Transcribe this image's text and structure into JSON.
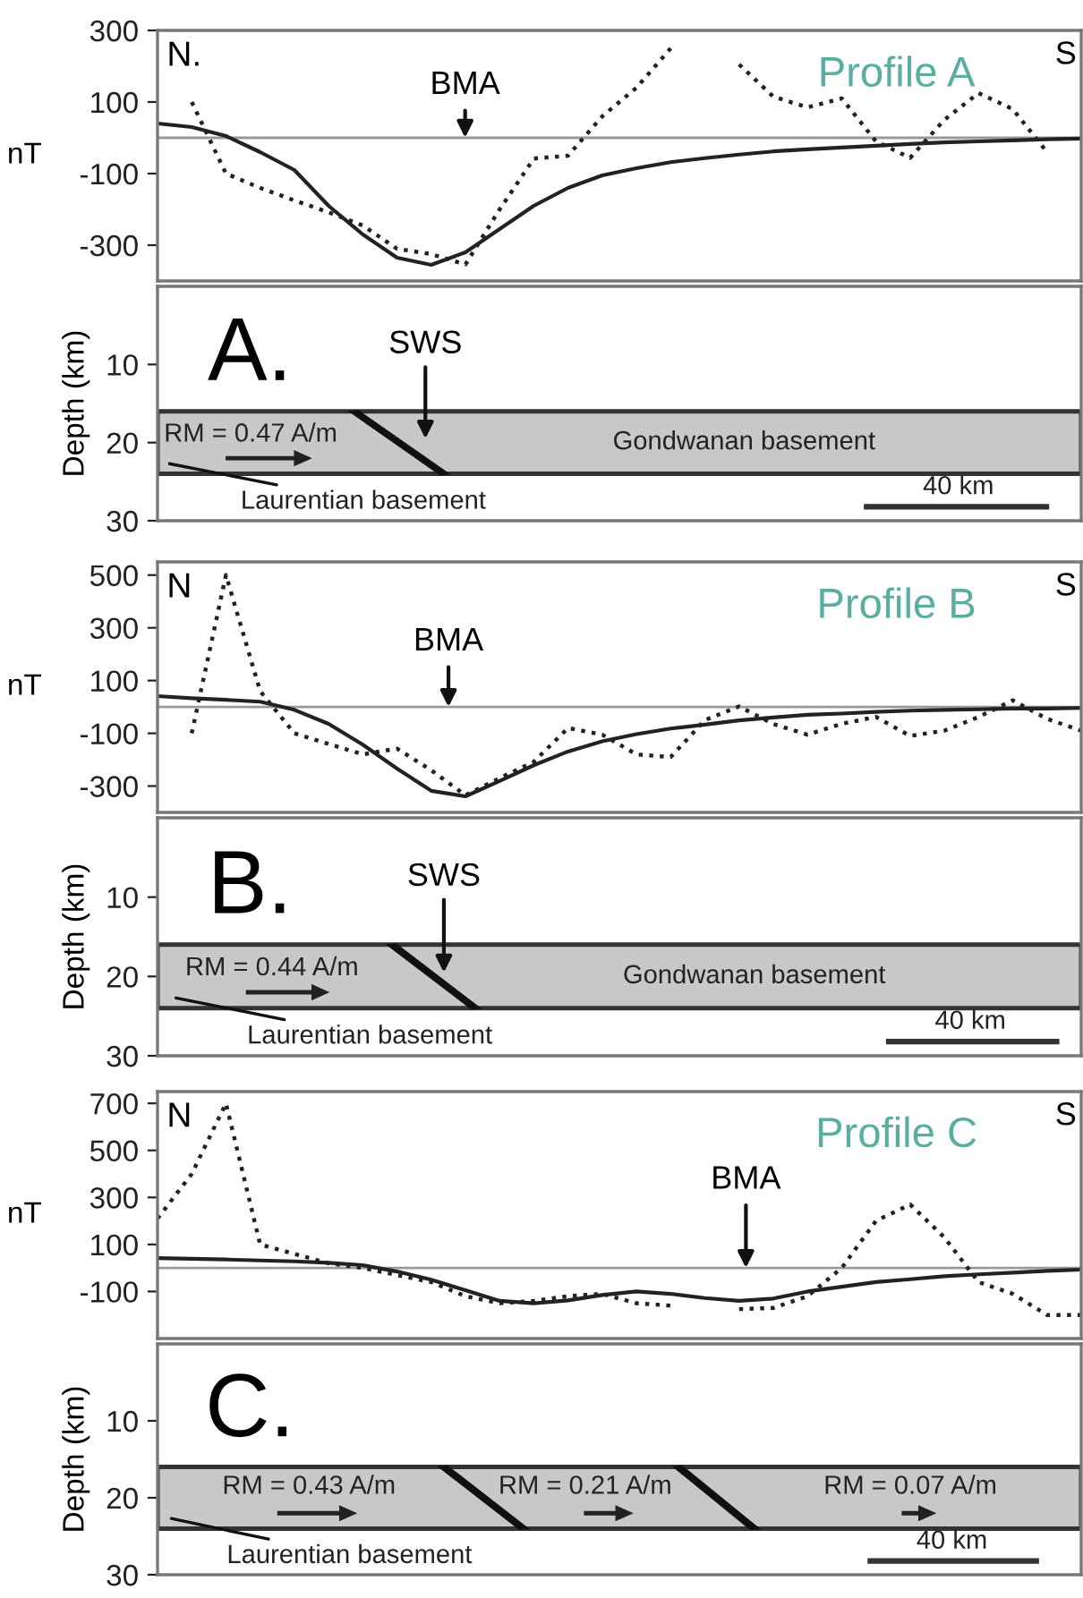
{
  "chart_data": [
    {
      "type": "line",
      "title": "Profile A",
      "ylabel": "nT",
      "categories": [
        null,
        null,
        null,
        null,
        null,
        null,
        null,
        null,
        null,
        null,
        null,
        null,
        null,
        null,
        null,
        null,
        null,
        null,
        null,
        null,
        null,
        null,
        null,
        null,
        null,
        null,
        null,
        null
      ],
      "ylim": [
        -400,
        300
      ],
      "yticks": [
        300,
        100,
        -100,
        -300
      ],
      "tick_labels": "y",
      "annotations": [
        "N.",
        "BMA",
        "S"
      ],
      "ref_lines": [
        {
          "axis": "y",
          "value": 0,
          "label": null,
          "color": "#999999"
        }
      ],
      "series": [
        {
          "color": "#222222",
          "line_style": "dotted",
          "values": [
            null,
            100,
            -100,
            -140,
            -175,
            -208,
            -245,
            -310,
            -325,
            -354,
            -200,
            -58,
            -50,
            60,
            140,
            250,
            null,
            205,
            115,
            85,
            110,
            -10,
            -56,
            50,
            125,
            80,
            -40,
            null
          ]
        },
        {
          "color": "#222222",
          "line_style": "solid",
          "values": [
            40,
            30,
            5,
            -40,
            -90,
            -190,
            -270,
            -335,
            -355,
            -320,
            -255,
            -190,
            -140,
            -105,
            -85,
            -68,
            -57,
            -47,
            -38,
            -32,
            -27,
            -22,
            -17,
            -13,
            -10,
            -7,
            -4,
            -2
          ]
        }
      ]
    },
    {
      "type": "line",
      "ylabel": "Depth (km)",
      "categories": [
        null,
        null,
        null,
        null,
        null,
        null,
        null,
        null,
        null,
        null,
        null,
        null,
        null,
        null,
        null,
        null,
        null,
        null,
        null,
        null,
        null,
        null,
        null,
        null,
        null,
        null,
        null,
        null
      ],
      "ylim": [
        30,
        0
      ],
      "yticks": [
        10,
        20,
        30
      ],
      "tick_labels": "y",
      "bands": [
        {
          "axis": "y",
          "from": 16,
          "to": 24,
          "label": null,
          "color": "#c8c8c8"
        }
      ],
      "annotations": [
        "A.",
        "SWS",
        "RM = 0.47 A/m",
        "Gondwanan basement",
        "Laurentian basement",
        "40 km"
      ]
    },
    {
      "type": "line",
      "title": "Profile B",
      "ylabel": "nT",
      "categories": [
        null,
        null,
        null,
        null,
        null,
        null,
        null,
        null,
        null,
        null,
        null,
        null,
        null,
        null,
        null,
        null,
        null,
        null,
        null,
        null,
        null,
        null,
        null,
        null,
        null,
        null,
        null,
        null
      ],
      "ylim": [
        -400,
        550
      ],
      "yticks": [
        500,
        300,
        100,
        -100,
        -300
      ],
      "tick_labels": "y",
      "annotations": [
        "N",
        "BMA",
        "S"
      ],
      "ref_lines": [
        {
          "axis": "y",
          "value": 0,
          "label": null,
          "color": "#999999"
        }
      ],
      "series": [
        {
          "color": "#222222",
          "line_style": "dotted",
          "values": [
            null,
            -100,
            500,
            60,
            -100,
            -140,
            -180,
            -158,
            -240,
            -335,
            -270,
            -208,
            -80,
            -105,
            -180,
            -190,
            -50,
            2,
            -65,
            -105,
            -64,
            -38,
            -110,
            -90,
            -38,
            25,
            -45,
            -90
          ]
        },
        {
          "color": "#222222",
          "line_style": "solid",
          "values": [
            41,
            33,
            27,
            20,
            -11,
            -64,
            -143,
            -234,
            -318,
            -339,
            -281,
            -221,
            -169,
            -130,
            -103,
            -82,
            -67,
            -51,
            -40,
            -30,
            -25,
            -19,
            -14,
            -11,
            -9,
            -6,
            -6,
            -4
          ]
        }
      ]
    },
    {
      "type": "line",
      "ylabel": "Depth (km)",
      "categories": [
        null,
        null,
        null,
        null,
        null,
        null,
        null,
        null,
        null,
        null,
        null,
        null,
        null,
        null,
        null,
        null,
        null,
        null,
        null,
        null,
        null,
        null,
        null,
        null,
        null,
        null,
        null,
        null
      ],
      "ylim": [
        30,
        0
      ],
      "yticks": [
        10,
        20,
        30
      ],
      "tick_labels": "y",
      "bands": [
        {
          "axis": "y",
          "from": 16,
          "to": 24,
          "label": null,
          "color": "#c8c8c8"
        }
      ],
      "annotations": [
        "B.",
        "SWS",
        "RM = 0.44 A/m",
        "Gondwanan basement",
        "Laurentian basement",
        "40 km"
      ]
    },
    {
      "type": "line",
      "title": "Profile C",
      "ylabel": "nT",
      "categories": [
        null,
        null,
        null,
        null,
        null,
        null,
        null,
        null,
        null,
        null,
        null,
        null,
        null,
        null,
        null,
        null,
        null,
        null,
        null,
        null,
        null,
        null,
        null,
        null,
        null,
        null,
        null,
        null
      ],
      "ylim": [
        -300,
        750
      ],
      "yticks": [
        700,
        500,
        300,
        100,
        -100
      ],
      "tick_labels": "y",
      "annotations": [
        "N",
        "BMA",
        "S"
      ],
      "ref_lines": [
        {
          "axis": "y",
          "value": 0,
          "label": null,
          "color": "#999999"
        }
      ],
      "series": [
        {
          "color": "#222222",
          "line_style": "dotted",
          "values": [
            210,
            400,
            700,
            100,
            60,
            20,
            0,
            -30,
            -60,
            -120,
            -150,
            -140,
            -120,
            -110,
            -150,
            -160,
            null,
            -175,
            -170,
            -120,
            0,
            200,
            270,
            130,
            -60,
            -110,
            -200,
            -200
          ]
        },
        {
          "color": "#222222",
          "line_style": "solid",
          "values": [
            42,
            39,
            36,
            32,
            28,
            22,
            12,
            -15,
            -50,
            -95,
            -140,
            -150,
            -138,
            -115,
            -100,
            -110,
            -128,
            -140,
            -130,
            -100,
            -80,
            -60,
            -48,
            -35,
            -27,
            -20,
            -12,
            -7
          ]
        }
      ]
    },
    {
      "type": "line",
      "ylabel": "Depth (km)",
      "categories": [
        null,
        null,
        null,
        null,
        null,
        null,
        null,
        null,
        null,
        null,
        null,
        null,
        null,
        null,
        null,
        null,
        null,
        null,
        null,
        null,
        null,
        null,
        null,
        null,
        null,
        null,
        null,
        null
      ],
      "ylim": [
        30,
        0
      ],
      "yticks": [
        10,
        20,
        30
      ],
      "tick_labels": "y",
      "bands": [
        {
          "axis": "y",
          "from": 16,
          "to": 24,
          "label": null,
          "color": "#c8c8c8"
        }
      ],
      "annotations": [
        "C.",
        "RM = 0.43 A/m",
        "RM = 0.21 A/m",
        "RM = 0.07 A/m",
        "Laurentian basement",
        "40 km"
      ]
    }
  ]
}
